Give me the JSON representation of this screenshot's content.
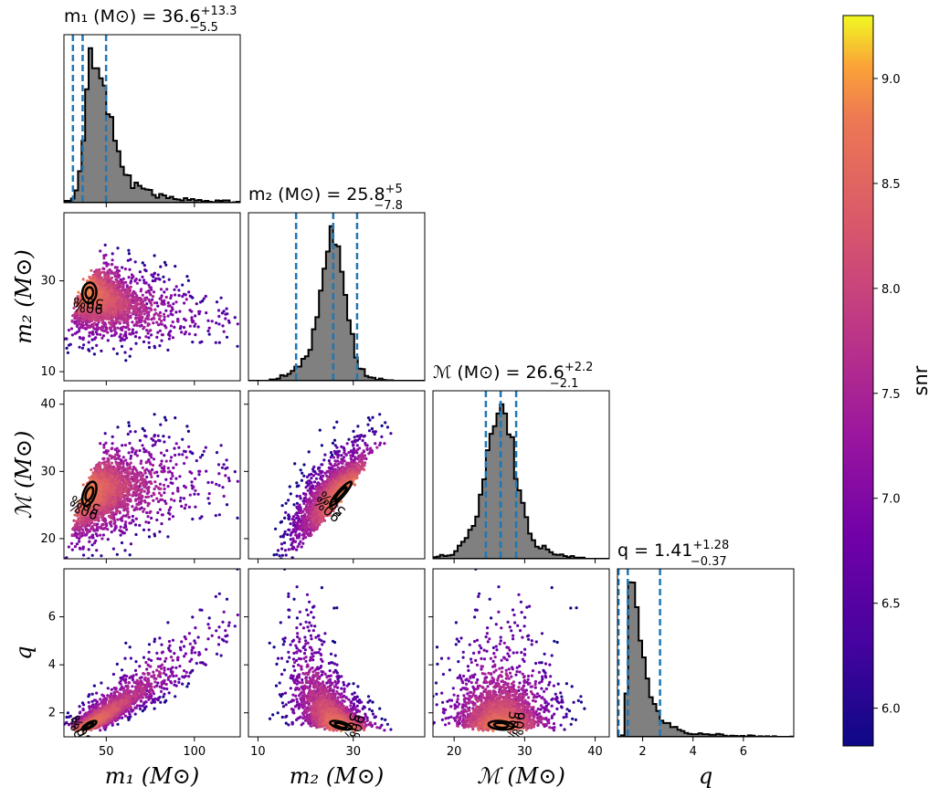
{
  "chart_data": {
    "type": "scatter",
    "parameters": [
      {
        "symbol": "m₁ (M⊙)",
        "title": "m₁ (M⊙) = 36.6",
        "median": "36.6",
        "upper": "+13.3",
        "lower": "−5.5",
        "range": [
          26,
          126
        ],
        "ticks": [
          50,
          100
        ],
        "hist_median": 36.6,
        "hist_low": 31.1,
        "hist_high": 49.9
      },
      {
        "symbol": "m₂ (M⊙)",
        "title": "m₂ (M⊙) = 25.8",
        "median": "25.8",
        "upper": "+5",
        "lower": "−7.8",
        "range": [
          8,
          45
        ],
        "ticks": [
          10,
          30
        ],
        "hist_median": 25.8,
        "hist_low": 18.0,
        "hist_high": 30.8
      },
      {
        "symbol": "ℳ (M⊙)",
        "title": "ℳ (M⊙) = 26.6",
        "median": "26.6",
        "upper": "+2.2",
        "lower": "−2.1",
        "range": [
          17,
          42
        ],
        "ticks": [
          20,
          30,
          40
        ],
        "hist_median": 26.6,
        "hist_low": 24.5,
        "hist_high": 28.8
      },
      {
        "symbol": "q",
        "title": "q = 1.41",
        "median": "1.41",
        "upper": "+1.28",
        "lower": "−0.37",
        "range": [
          1,
          8
        ],
        "ticks": [
          2,
          4,
          6
        ],
        "hist_median": 1.41,
        "hist_low": 1.04,
        "hist_high": 2.69
      }
    ],
    "row_ticks": [
      [],
      [
        10,
        30
      ],
      [
        20,
        30,
        40
      ],
      [
        2,
        4,
        6
      ]
    ],
    "contour_levels": [
      "50%",
      "90%"
    ],
    "colorbar": {
      "label": "snr",
      "colormap": "plasma",
      "min": 5.82,
      "max": 9.3,
      "ticks": [
        "6.0",
        "6.5",
        "7.0",
        "7.5",
        "8.0",
        "8.5",
        "9.0"
      ],
      "tick_values": [
        6.0,
        6.5,
        7.0,
        7.5,
        8.0,
        8.5,
        9.0
      ]
    },
    "hist_color": "#808080",
    "quantile_line_color": "#1f77b4"
  }
}
